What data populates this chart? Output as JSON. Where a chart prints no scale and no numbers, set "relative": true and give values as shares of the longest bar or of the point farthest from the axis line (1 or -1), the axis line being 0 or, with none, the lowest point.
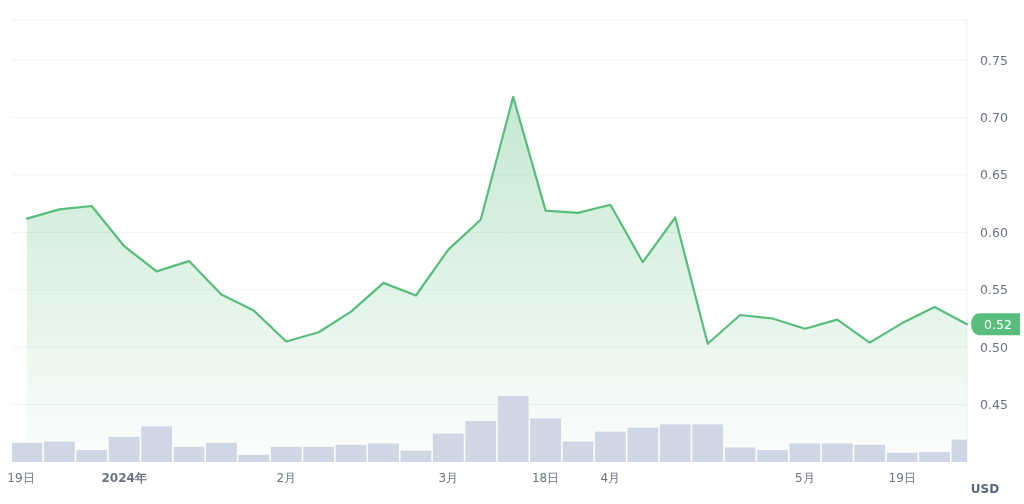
{
  "chart_data": [
    {
      "type": "area",
      "ylabel": "USD",
      "categories": [
        "19日",
        null,
        null,
        "2024年",
        null,
        null,
        null,
        null,
        "2月",
        null,
        null,
        null,
        null,
        "3月",
        null,
        null,
        "18日",
        null,
        "4月",
        null,
        null,
        null,
        null,
        null,
        "5月",
        null,
        null,
        "19日",
        null,
        null
      ],
      "series": [
        {
          "color": "#58bd7d",
          "values": [
            0.612,
            0.62,
            0.623,
            0.588,
            0.566,
            0.575,
            0.546,
            0.532,
            0.505,
            0.513,
            0.531,
            0.556,
            0.545,
            0.585,
            0.611,
            0.718,
            0.619,
            0.617,
            0.624,
            0.574,
            0.613,
            0.503,
            0.528,
            0.525,
            0.516,
            0.524,
            0.504,
            0.521,
            0.535,
            0.52
          ]
        }
      ],
      "ylim": [
        0.4,
        0.785
      ],
      "yticks": [
        0.45,
        {
          "value": 0.5,
          "label": "0.50"
        },
        0.55,
        {
          "value": 0.6,
          "label": "0.60"
        },
        0.65,
        {
          "value": 0.7,
          "label": "0.70"
        },
        0.75
      ],
      "grid": "y",
      "annotations": [
        "0.52"
      ]
    },
    {
      "type": "bar",
      "relative": true,
      "categories": [
        null,
        null,
        null,
        null,
        null,
        null,
        null,
        null,
        null,
        null,
        null,
        null,
        null,
        null,
        null,
        null,
        null,
        null,
        null,
        null,
        null,
        null,
        null,
        null,
        null,
        null,
        null,
        null,
        null,
        null
      ],
      "series": [
        {
          "color": "#cfd6e4",
          "values": [
            0.29,
            0.31,
            0.18,
            0.38,
            0.54,
            0.23,
            0.29,
            0.11,
            0.23,
            0.23,
            0.26,
            0.28,
            0.17,
            0.43,
            0.62,
            1,
            0.66,
            0.31,
            0.46,
            0.52,
            0.57,
            0.57,
            0.22,
            0.18,
            0.28,
            0.28,
            0.26,
            0.14,
            0.15,
            0.34
          ]
        }
      ]
    }
  ]
}
